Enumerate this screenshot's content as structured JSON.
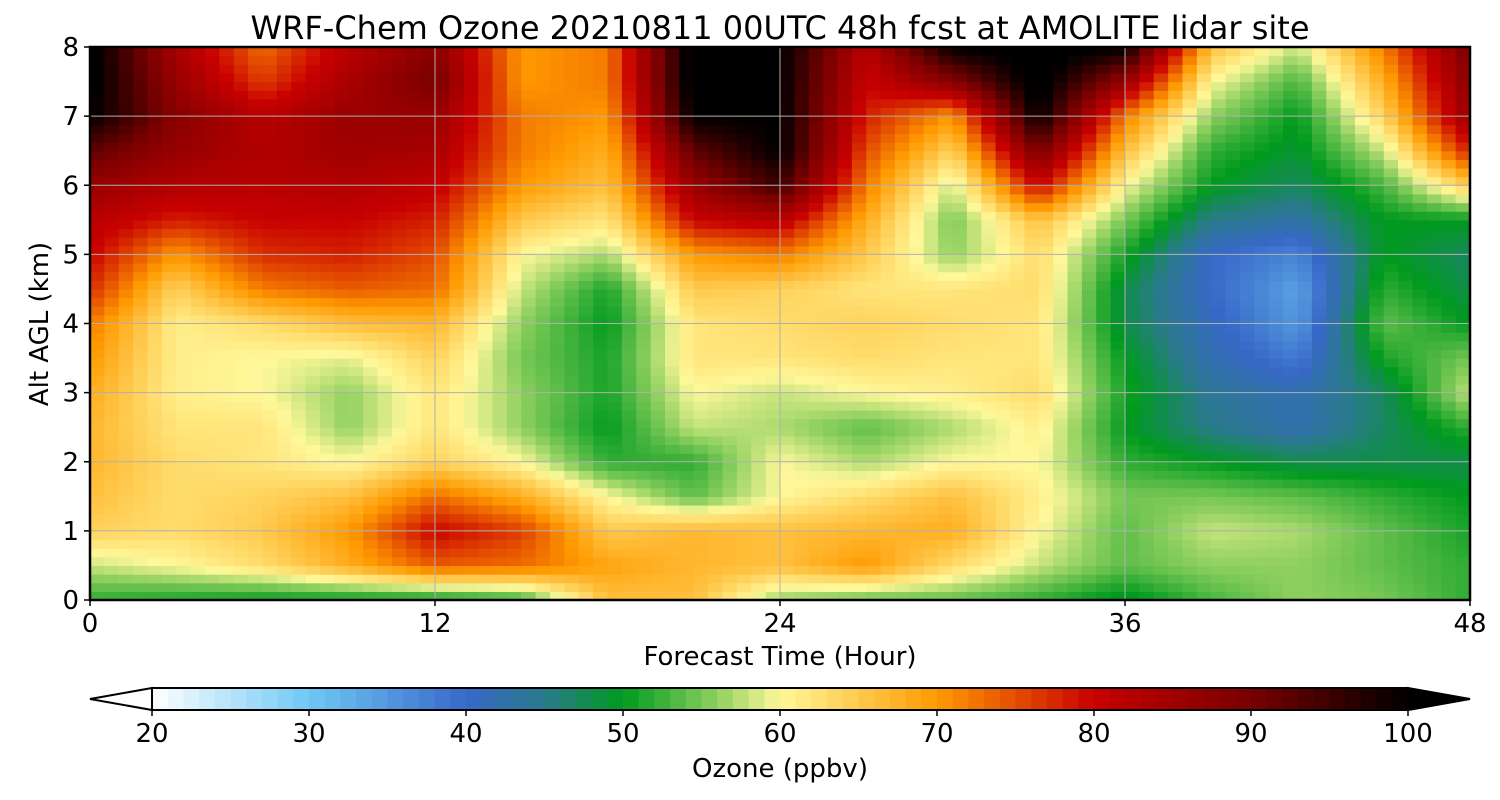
{
  "chart_data": {
    "type": "heatmap",
    "title": "WRF-Chem Ozone  20210811 00UTC 48h fcst at AMOLITE lidar site",
    "xlabel": "Forecast Time (Hour)",
    "ylabel": "Alt AGL (km)",
    "xlim": [
      0,
      48
    ],
    "ylim": [
      0,
      8
    ],
    "x_ticks": [
      0,
      12,
      24,
      36,
      48
    ],
    "y_ticks": [
      0,
      1,
      2,
      3,
      4,
      5,
      6,
      7,
      8
    ],
    "grid": true,
    "x": [
      0,
      3,
      6,
      9,
      12,
      15,
      18,
      21,
      24,
      27,
      30,
      33,
      36,
      39,
      42,
      45,
      48
    ],
    "y": [
      0,
      0.5,
      1,
      1.5,
      2,
      2.5,
      3,
      3.5,
      4,
      4.5,
      5,
      5.5,
      6,
      6.5,
      7,
      7.5,
      8
    ],
    "z_units": "ppbv",
    "z": [
      [
        52,
        51,
        50,
        50,
        50,
        52,
        66,
        66,
        56,
        54,
        54,
        52,
        49,
        53,
        56,
        55,
        52
      ],
      [
        58,
        60,
        63,
        68,
        74,
        73,
        69,
        67,
        66,
        70,
        63,
        58,
        54,
        56,
        56,
        54,
        52
      ],
      [
        64,
        63,
        65,
        70,
        80,
        76,
        65,
        67,
        66,
        67,
        68,
        60,
        54,
        58,
        57,
        54,
        51
      ],
      [
        66,
        63,
        64,
        66,
        73,
        68,
        60,
        54,
        60,
        63,
        66,
        61,
        55,
        55,
        54,
        52,
        50
      ],
      [
        67,
        63,
        62,
        60,
        64,
        60,
        52,
        52,
        60,
        57,
        60,
        60,
        52,
        50,
        48,
        48,
        48
      ],
      [
        67,
        62,
        62,
        56,
        62,
        56,
        50,
        58,
        57,
        54,
        57,
        61,
        50,
        45,
        42,
        47,
        52
      ],
      [
        68,
        61,
        60,
        56,
        62,
        56,
        51,
        60,
        58,
        60,
        61,
        63,
        51,
        44,
        42,
        47,
        58
      ],
      [
        70,
        61,
        60,
        59,
        64,
        55,
        51,
        62,
        62,
        63,
        62,
        62,
        50,
        42,
        38,
        51,
        55
      ],
      [
        72,
        61,
        63,
        66,
        67,
        56,
        50,
        62,
        63,
        64,
        63,
        62,
        48,
        41,
        35,
        54,
        50
      ],
      [
        77,
        64,
        72,
        74,
        73,
        58,
        51,
        65,
        64,
        62,
        62,
        63,
        48,
        40,
        34,
        52,
        48
      ],
      [
        80,
        70,
        77,
        78,
        75,
        60,
        57,
        70,
        72,
        65,
        56,
        63,
        51,
        40,
        37,
        50,
        47
      ],
      [
        82,
        78,
        80,
        80,
        78,
        65,
        62,
        80,
        82,
        68,
        55,
        66,
        55,
        45,
        43,
        50,
        50
      ],
      [
        86,
        83,
        82,
        83,
        81,
        70,
        66,
        86,
        95,
        72,
        58,
        80,
        60,
        50,
        47,
        53,
        65
      ],
      [
        92,
        86,
        83,
        85,
        84,
        72,
        68,
        92,
        100,
        75,
        64,
        90,
        66,
        52,
        49,
        58,
        78
      ],
      [
        100,
        88,
        82,
        86,
        86,
        72,
        70,
        100,
        100,
        78,
        70,
        100,
        72,
        56,
        50,
        64,
        86
      ],
      [
        101,
        86,
        76,
        84,
        90,
        70,
        72,
        102,
        100,
        80,
        88,
        102,
        86,
        60,
        53,
        68,
        88
      ],
      [
        101,
        84,
        73,
        82,
        88,
        70,
        72,
        102,
        100,
        82,
        100,
        102,
        100,
        66,
        58,
        72,
        90
      ]
    ]
  },
  "colorbar": {
    "label": "Ozone  (ppbv)",
    "min": 20,
    "max": 100,
    "extend": "both",
    "ticks": [
      "20",
      "30",
      "40",
      "50",
      "60",
      "70",
      "80",
      "90",
      "100"
    ],
    "colormap": [
      [
        20,
        "#ffffff"
      ],
      [
        30,
        "#6ec8f5"
      ],
      [
        40,
        "#3868c8"
      ],
      [
        45,
        "#2a7a8c"
      ],
      [
        50,
        "#009a1e"
      ],
      [
        56,
        "#8fd060"
      ],
      [
        60,
        "#fff89a"
      ],
      [
        70,
        "#ff9a00"
      ],
      [
        80,
        "#c80000"
      ],
      [
        90,
        "#780000"
      ],
      [
        100,
        "#000000"
      ]
    ]
  }
}
